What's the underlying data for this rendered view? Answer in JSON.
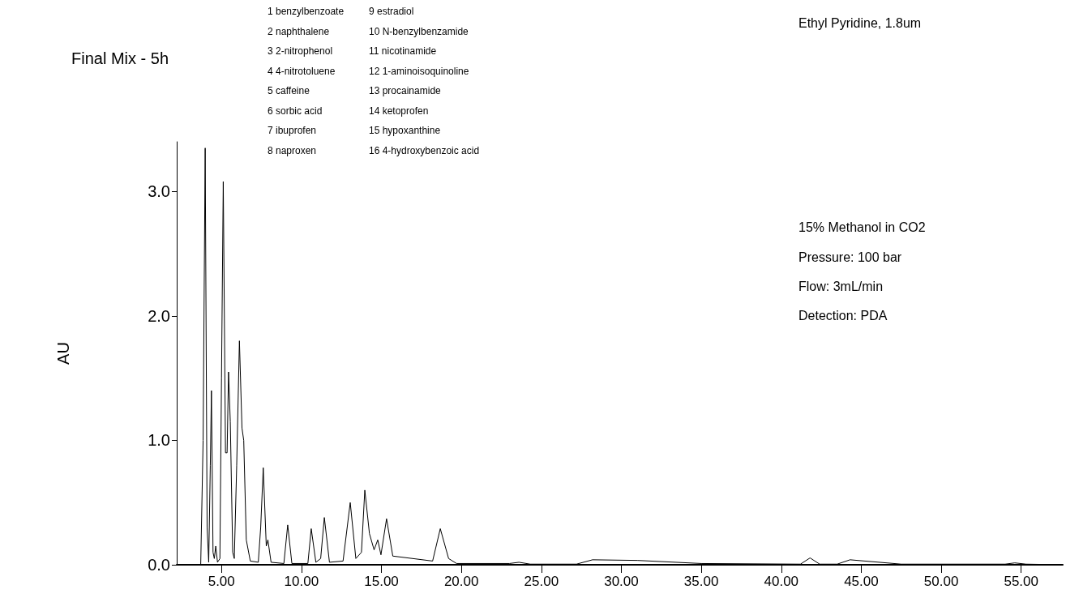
{
  "chart_data": {
    "type": "line",
    "title": "Final Mix - 5h",
    "ylabel": "AU",
    "color": "#000000",
    "marker": "none",
    "grid": false,
    "annotations": [
      "1 benzylbenzoate",
      "2 naphthalene",
      "3 2-nitrophenol",
      "4 4-nitrotoluene",
      "5 caffeine",
      "6 sorbic acid",
      "7 ibuprofen",
      "8 naproxen",
      "9 estradiol",
      "10 N-benzylbenzamide",
      "11 nicotinamide",
      "12 1-aminoisoquinoline",
      "13 procainamide",
      "14 ketoprofen",
      "15 hypoxanthine",
      "16 4-hydroxybenzoic acid",
      "Ethyl Pyridine, 1.8um",
      "15% Methanol in CO2",
      "Pressure: 100 bar",
      "Flow: 3mL/min",
      "Detection: PDA"
    ],
    "xlim": [
      2.2,
      57.6
    ],
    "ylim": [
      0,
      3.4
    ],
    "xticks": [
      {
        "value": 5,
        "label": "5.00"
      },
      {
        "value": 10,
        "label": "10.00"
      },
      {
        "value": 15,
        "label": "15.00"
      },
      {
        "value": 20,
        "label": "20.00"
      },
      {
        "value": 25,
        "label": "25.00"
      },
      {
        "value": 30,
        "label": "30.00"
      },
      {
        "value": 35,
        "label": "35.00"
      },
      {
        "value": 40,
        "label": "40.00"
      },
      {
        "value": 45,
        "label": "45.00"
      },
      {
        "value": 50,
        "label": "50.00"
      },
      {
        "value": 55,
        "label": "55.00"
      }
    ],
    "yticks": [
      {
        "value": 0,
        "label": "0.0"
      },
      {
        "value": 1,
        "label": "1.0"
      },
      {
        "value": 2,
        "label": "2.0"
      },
      {
        "value": 3,
        "label": "3.0"
      }
    ],
    "x": [
      2.2,
      3.7,
      3.85,
      3.98,
      4.1,
      4.2,
      4.3,
      4.37,
      4.47,
      4.55,
      4.64,
      4.75,
      4.9,
      5.0,
      5.11,
      5.25,
      5.35,
      5.44,
      5.55,
      5.7,
      5.8,
      5.95,
      6.12,
      6.28,
      6.39,
      6.55,
      6.8,
      7.3,
      7.45,
      7.61,
      7.8,
      7.9,
      8.1,
      8.9,
      9.14,
      9.4,
      10.4,
      10.61,
      10.9,
      11.2,
      11.43,
      11.75,
      12.6,
      13.05,
      13.4,
      13.75,
      13.96,
      14.25,
      14.54,
      14.77,
      14.97,
      15.32,
      15.71,
      18.2,
      18.68,
      19.2,
      19.7,
      23,
      23.6,
      24.3,
      27.2,
      28.2,
      31,
      35,
      41.2,
      41.8,
      42.4,
      43.5,
      44.3,
      47.5,
      54,
      54.6,
      55.3,
      57.6
    ],
    "values": [
      0,
      0,
      1.0,
      3.35,
      0.3,
      0.02,
      0.8,
      1.4,
      0.1,
      0.05,
      0.15,
      0.02,
      0.05,
      1.5,
      3.08,
      0.9,
      0.9,
      1.55,
      1.15,
      0.1,
      0.05,
      0.8,
      1.8,
      1.1,
      1.0,
      0.2,
      0.03,
      0.02,
      0.3,
      0.78,
      0.15,
      0.2,
      0.02,
      0.01,
      0.32,
      0.01,
      0.01,
      0.29,
      0.02,
      0.05,
      0.38,
      0.02,
      0.03,
      0.5,
      0.05,
      0.1,
      0.6,
      0.25,
      0.12,
      0.2,
      0.08,
      0.37,
      0.07,
      0.03,
      0.29,
      0.05,
      0.01,
      0.01,
      0.02,
      0.005,
      0.005,
      0.04,
      0.035,
      0.01,
      0.005,
      0.055,
      0.005,
      0.005,
      0.04,
      0.005,
      0.005,
      0.015,
      0.005,
      0
    ]
  }
}
